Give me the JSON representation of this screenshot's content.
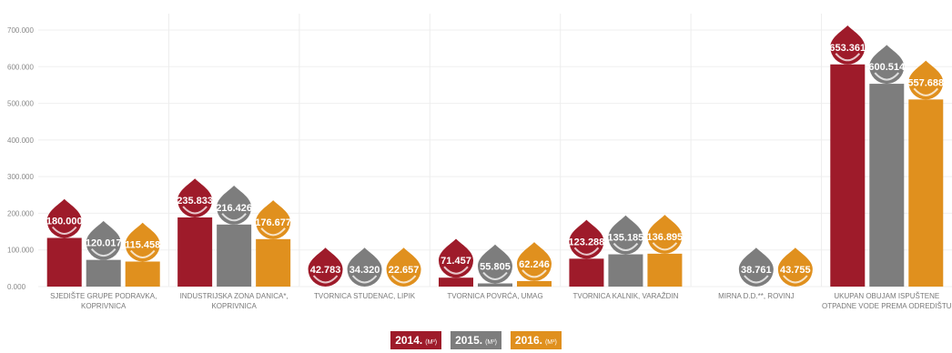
{
  "chart_data": {
    "type": "bar",
    "y_ticks": [
      "700.000",
      "600.000",
      "500.000",
      "400.000",
      "300.000",
      "200.000",
      "100.000",
      "0.000"
    ],
    "ylim": [
      0,
      700000
    ],
    "categories": [
      [
        "SJEDIŠTE GRUPE PODRAVKA,",
        "KOPRIVNICA"
      ],
      [
        "INDUSTRIJSKA ZONA DANICA*,",
        "KOPRIVNICA"
      ],
      [
        "TVORNICA STUDENAC, LIPIK"
      ],
      [
        "TVORNICA POVRĆA, UMAG"
      ],
      [
        "TVORNICA KALNIK, VARAŽDIN"
      ],
      [
        "MIRNA D.D.**, ROVINJ"
      ],
      [
        "UKUPAN OBUJAM ISPUŠTENE",
        "OTPADNE VODE PREMA ODREDIŠTU"
      ]
    ],
    "series": [
      {
        "name": "2014.",
        "unit": "(M³)",
        "color": "#9e1b2a",
        "values": [
          180000,
          235833,
          42783,
          71457,
          123288,
          null,
          653361
        ],
        "labels": [
          "180.000",
          "235.833",
          "42.783",
          "71.457",
          "123.288",
          "",
          "653.361"
        ]
      },
      {
        "name": "2015.",
        "unit": "(M³)",
        "color": "#7d7d7d",
        "values": [
          120017,
          216426,
          34320,
          55805,
          135185,
          38761,
          600514
        ],
        "labels": [
          "120.017",
          "216.426",
          "34.320",
          "55.805",
          "135.185",
          "38.761",
          "600.514"
        ]
      },
      {
        "name": "2016.",
        "unit": "(M³)",
        "color": "#e0901e",
        "values": [
          115458,
          176677,
          22657,
          62246,
          136895,
          43755,
          557688
        ],
        "labels": [
          "115.458",
          "176.677",
          "22.657",
          "62.246",
          "136.895",
          "43.755",
          "557.688"
        ]
      }
    ],
    "grid": true,
    "legend_position": "bottom-center"
  }
}
